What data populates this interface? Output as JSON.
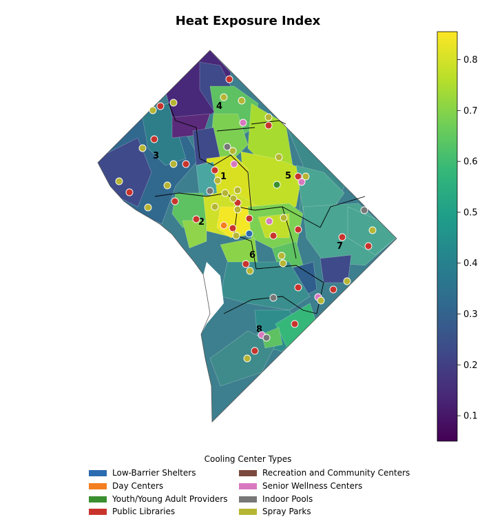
{
  "title": "Heat Exposure Index",
  "colorbar": {
    "min": 0.05,
    "max": 0.855,
    "ticks": [
      {
        "value": 0.1,
        "label": "0.1"
      },
      {
        "value": 0.2,
        "label": "0.2"
      },
      {
        "value": 0.3,
        "label": "0.3"
      },
      {
        "value": 0.4,
        "label": "0.4"
      },
      {
        "value": 0.5,
        "label": "0.5"
      },
      {
        "value": 0.6,
        "label": "0.6"
      },
      {
        "value": 0.7,
        "label": "0.7"
      },
      {
        "value": 0.8,
        "label": "0.8"
      }
    ],
    "gradient": [
      "#440154",
      "#482878",
      "#3e4a89",
      "#31688e",
      "#26828e",
      "#1f9e89",
      "#35b779",
      "#6ece58",
      "#b5de2b",
      "#fde725"
    ]
  },
  "wards": [
    {
      "label": "1"
    },
    {
      "label": "2"
    },
    {
      "label": "3"
    },
    {
      "label": "4"
    },
    {
      "label": "5"
    },
    {
      "label": "6"
    },
    {
      "label": "7"
    },
    {
      "label": "8"
    }
  ],
  "legend": {
    "title": "Cooling Center Types",
    "items": [
      {
        "label": "Low-Barrier Shelters",
        "color": "#2b6cb0"
      },
      {
        "label": "Day Centers",
        "color": "#f47f20"
      },
      {
        "label": "Youth/Young Adult Providers",
        "color": "#3a8f2f"
      },
      {
        "label": "Public Libraries",
        "color": "#c8342c"
      },
      {
        "label": "Recreation and Community Centers",
        "color": "#7b4a3e"
      },
      {
        "label": "Senior Wellness Centers",
        "color": "#d879c0"
      },
      {
        "label": "Indoor Pools",
        "color": "#777777"
      },
      {
        "label": "Spray Parks",
        "color": "#b6b534"
      }
    ]
  }
}
